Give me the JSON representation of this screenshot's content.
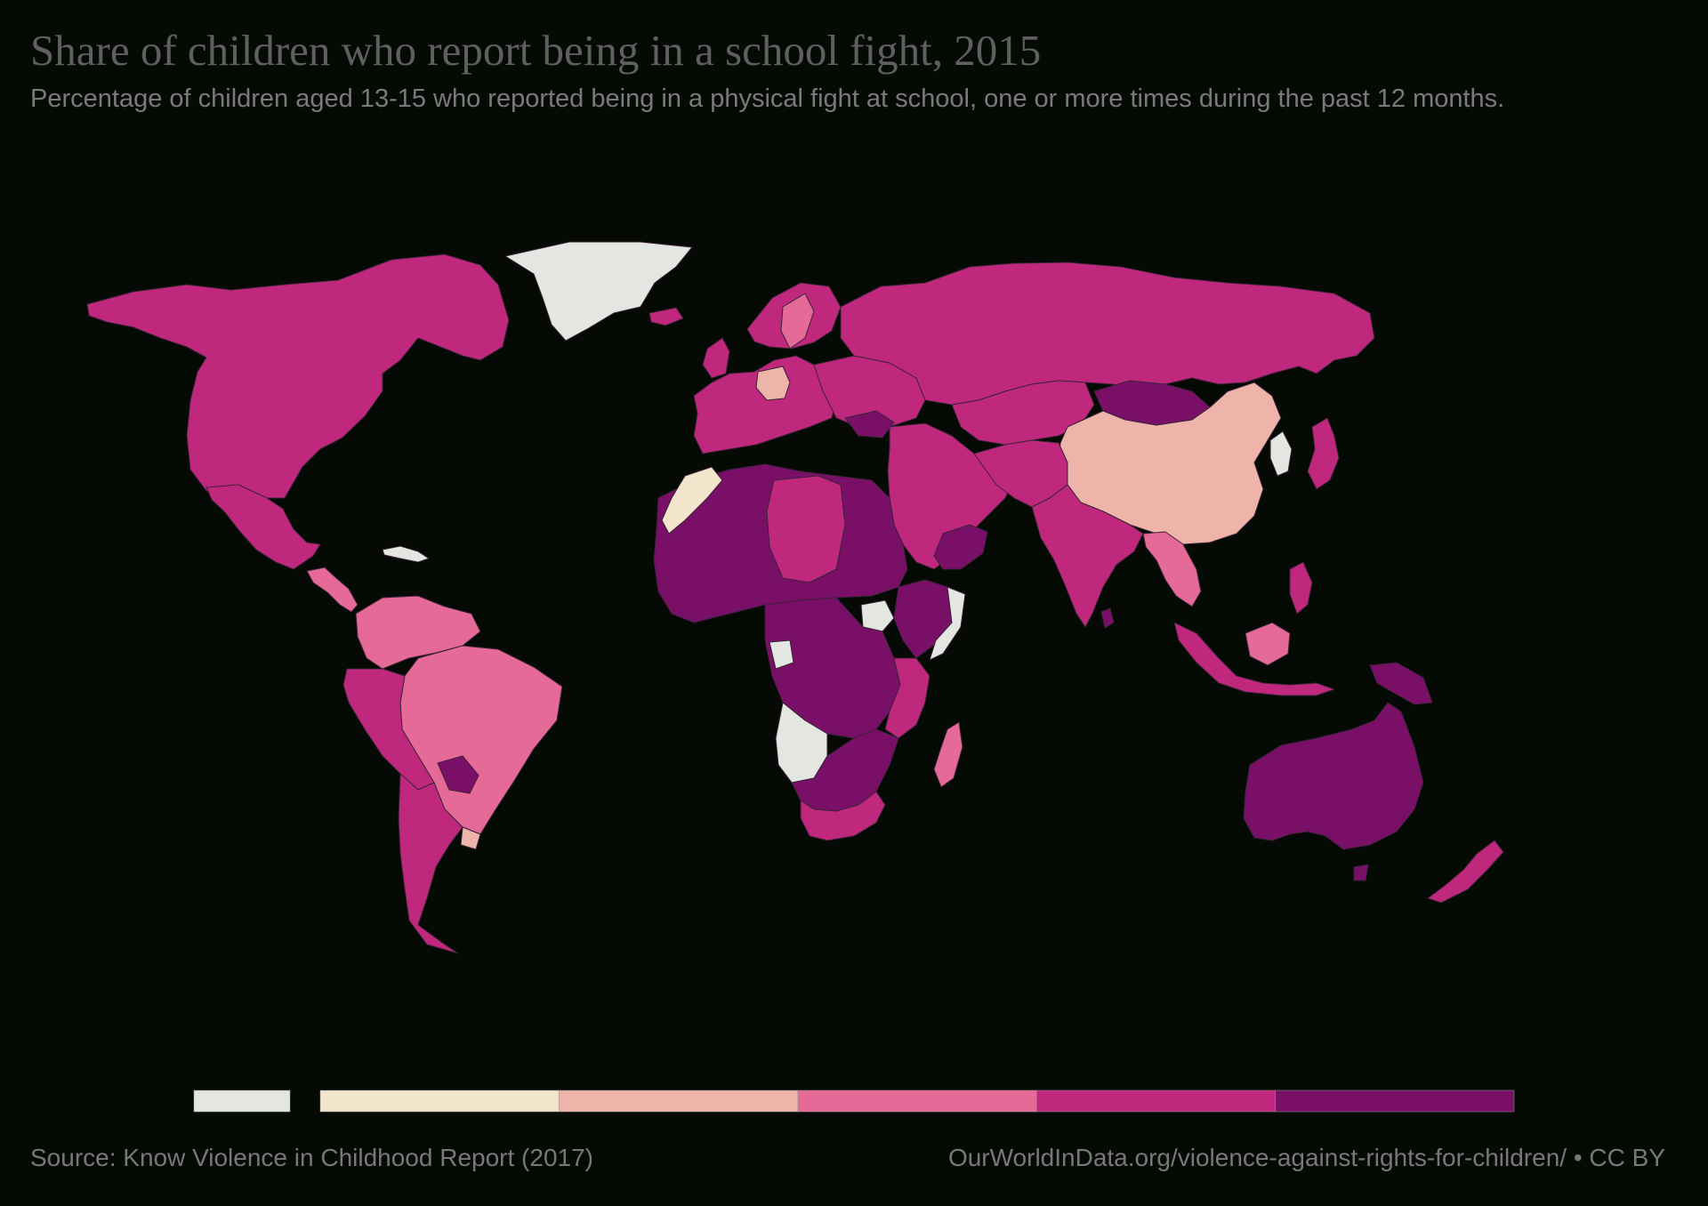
{
  "header": {
    "title": "Share of children who report being in a school fight, 2015",
    "subtitle": "Percentage of children aged 13-15 who reported being in a physical fight at school, one or more times during the past 12 months."
  },
  "legend": {
    "no_data_color": "#e4e7e1",
    "bins": [
      {
        "color": "#f3e4cc"
      },
      {
        "color": "#eeb3a9"
      },
      {
        "color": "#e66a98"
      },
      {
        "color": "#c0287d"
      },
      {
        "color": "#7a0f68"
      }
    ]
  },
  "footer": {
    "source": "Source: Know Violence in Childhood Report (2017)",
    "credit": "OurWorldInData.org/violence-against-rights-for-children/ • CC BY"
  }
}
